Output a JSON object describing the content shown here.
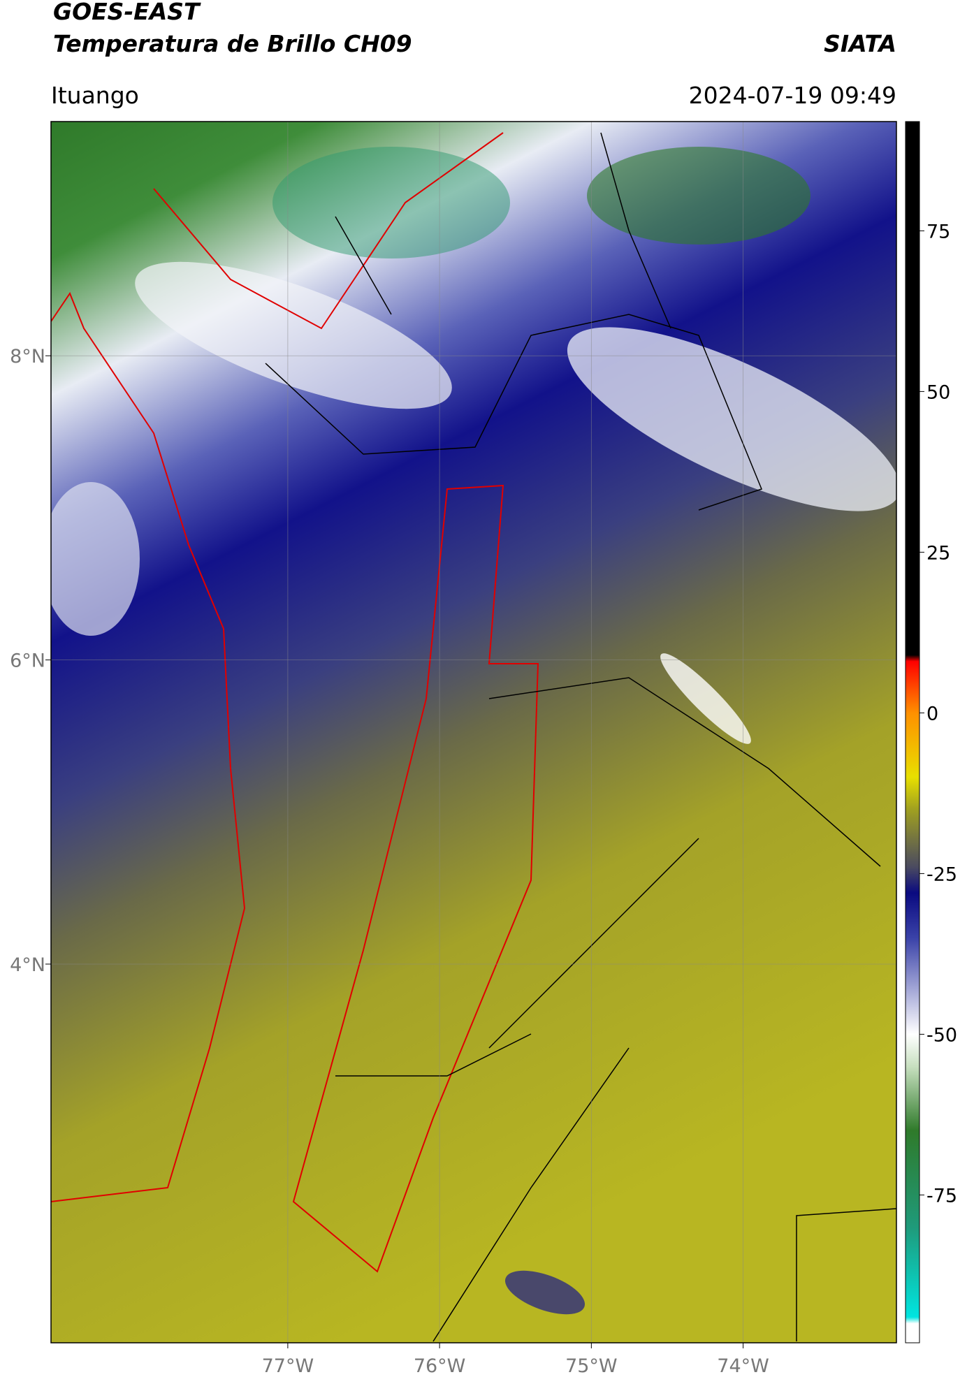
{
  "header": {
    "satellite": "GOES-EAST",
    "product": "Temperatura de Brillo CH09",
    "agency": "SIATA",
    "location": "Ituango",
    "datetime": "2024-07-19 09:49"
  },
  "map": {
    "lonlim": [
      -78.56,
      -72.99
    ],
    "latlim": [
      1.51,
      9.54
    ],
    "lonticks": [
      {
        "value": -77,
        "label": "77°W"
      },
      {
        "value": -76,
        "label": "76°W"
      },
      {
        "value": -75,
        "label": "75°W"
      },
      {
        "value": -74,
        "label": "74°W"
      }
    ],
    "latticks": [
      {
        "value": 8,
        "label": "8°N"
      },
      {
        "value": 6,
        "label": "6°N"
      },
      {
        "value": 4,
        "label": "4°N"
      }
    ],
    "grid": true
  },
  "colorbar": {
    "lim": [
      -98,
      92
    ],
    "ticks": [
      75,
      50,
      25,
      0,
      -25,
      -50,
      -75
    ],
    "colormap": [
      {
        "value": -98,
        "color": "#ffffff"
      },
      {
        "value": -95,
        "color": "#ffffff"
      },
      {
        "value": -94,
        "color": "#00e5e0"
      },
      {
        "value": -80,
        "color": "#1f9a7a"
      },
      {
        "value": -65,
        "color": "#2f7a2a"
      },
      {
        "value": -55,
        "color": "#c8e0c0"
      },
      {
        "value": -50,
        "color": "#ffffff"
      },
      {
        "value": -35,
        "color": "#3a42a8"
      },
      {
        "value": -28,
        "color": "#0a0a80"
      },
      {
        "value": -24,
        "color": "#4a4a60"
      },
      {
        "value": -15,
        "color": "#a0a020"
      },
      {
        "value": -10,
        "color": "#e8e000"
      },
      {
        "value": 0,
        "color": "#ff9000"
      },
      {
        "value": 8,
        "color": "#ff0000"
      },
      {
        "value": 9,
        "color": "#000000"
      },
      {
        "value": 92,
        "color": "#000000"
      }
    ]
  }
}
